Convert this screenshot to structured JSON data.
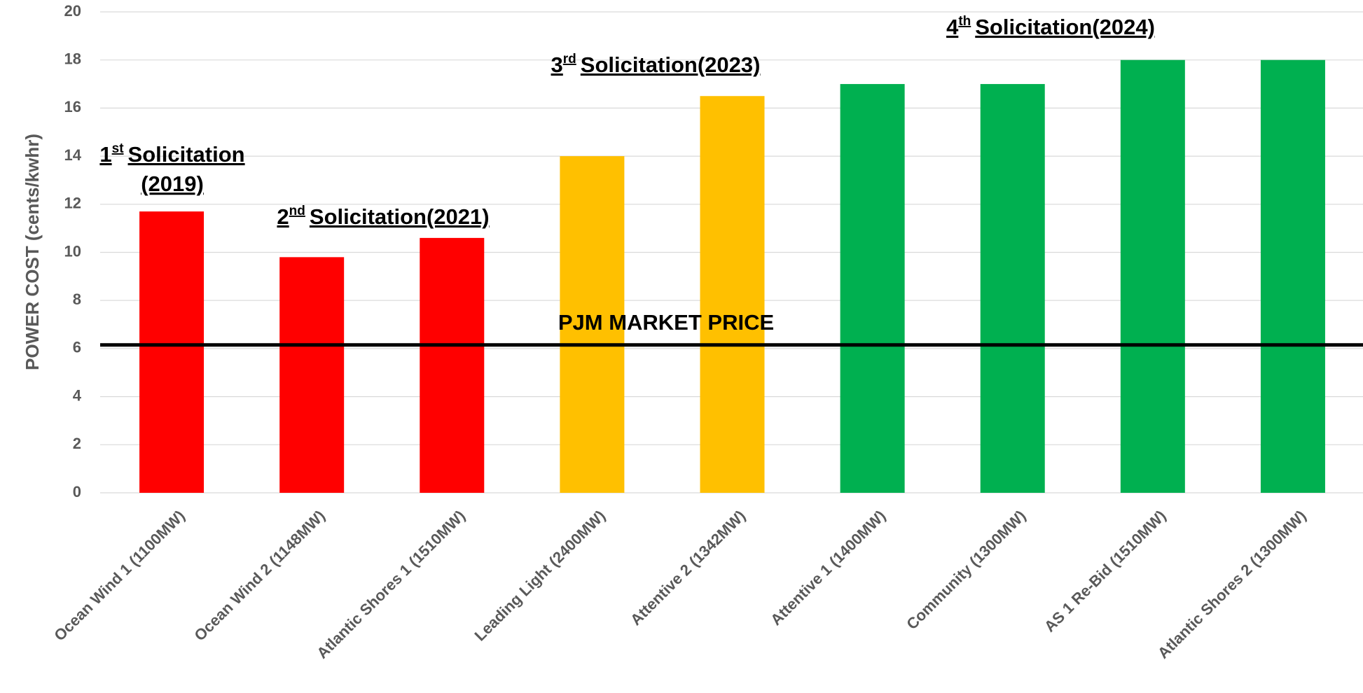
{
  "chart_data": {
    "type": "bar",
    "y_label": "POWER COST (cents/kwhr)",
    "categories": [
      "Ocean Wind 1 (1100MW)",
      "Ocean Wind 2 (1148MW)",
      "Atlantic Shores 1 (1510MW)",
      "Leading Light (2400MW)",
      "Attentive 2 (1342MW)",
      "Attentive 1 (1400MW)",
      "Community (1300MW)",
      "AS 1 Re-Bid (1510MW)",
      "Atlantic Shores 2 (1300MW)"
    ],
    "values": [
      11.7,
      9.8,
      10.6,
      14,
      16.5,
      17,
      17,
      18,
      18
    ],
    "colors": [
      "#ff0000",
      "#ff0000",
      "#ff0000",
      "#ffc000",
      "#ffc000",
      "#00b050",
      "#00b050",
      "#00b050",
      "#00b050"
    ],
    "ylim": [
      0,
      20
    ],
    "yticks": [
      0,
      2,
      4,
      6,
      8,
      10,
      12,
      14,
      16,
      18,
      20
    ],
    "grid": true,
    "reference_line": {
      "label": "PJM MARKET PRICE",
      "value": 6.15,
      "color": "#000000"
    },
    "annotations": [
      {
        "ordinal": "1",
        "sup": "st",
        "lines": [
          "Solicitation",
          "(2019)"
        ]
      },
      {
        "ordinal": "2",
        "sup": "nd",
        "lines": [
          "Solicitation(2021)"
        ]
      },
      {
        "ordinal": "3",
        "sup": "rd",
        "lines": [
          "Solicitation(2023)"
        ]
      },
      {
        "ordinal": "4",
        "sup": "th",
        "lines": [
          "Solicitation(2024)"
        ]
      }
    ]
  }
}
